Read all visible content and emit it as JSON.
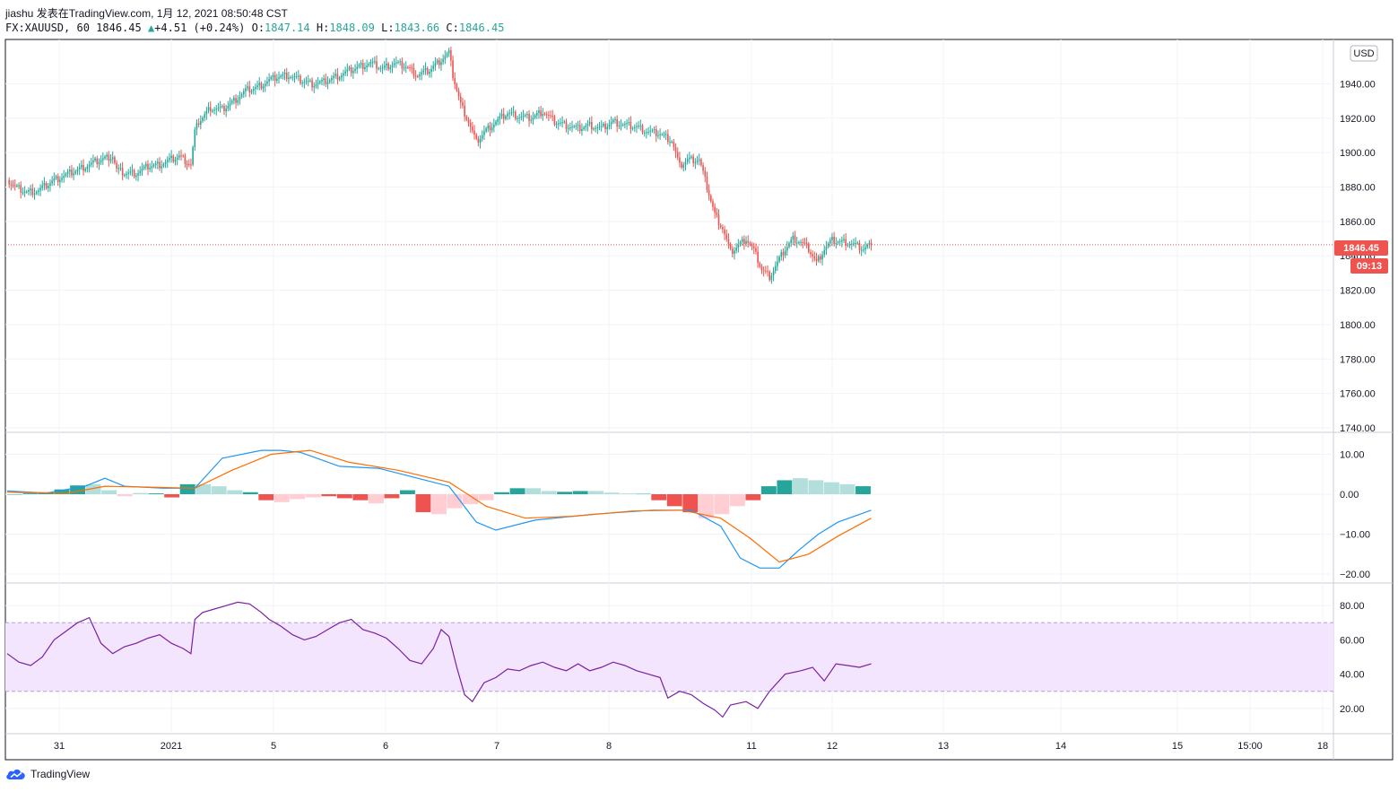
{
  "header": {
    "author": "jiashu",
    "published": "发表在TradingView.com, 1月 12, 2021 08:50:48 CST",
    "symbol": "FX:XAUUSD, 60",
    "last": "1846.45",
    "change_arrow": "▲",
    "change": "+4.51 (+0.24%)",
    "o_label": "O:",
    "o_value": "1847.14",
    "h_label": "H:",
    "h_value": "1848.09",
    "l_label": "L:",
    "l_value": "1843.66",
    "c_label": "C:",
    "c_value": "1846.45"
  },
  "currency_badge": "USD",
  "current_price_tag": "1846.45",
  "countdown_tag": "09:13",
  "footer": {
    "brand": "TradingView"
  },
  "colors": {
    "up": "#26a69a",
    "down": "#ef5350",
    "macd": "#2196f3",
    "signal": "#ff6d00",
    "rsi": "#7b1fa2",
    "rsi_band": "#f3e5fd",
    "price_line": "#ef5350",
    "hist_up_strong": "#26a69a",
    "hist_up_weak": "#b2dfdb",
    "hist_down_strong": "#ef5350",
    "hist_down_weak": "#ffcdd2"
  },
  "chart_data": [
    {
      "type": "candlestick",
      "title": "FX:XAUUSD, 60",
      "x_ticks": [
        "31",
        "2021",
        "5",
        "6",
        "7",
        "8",
        "11",
        "12",
        "13",
        "14",
        "15",
        "15:00",
        "18"
      ],
      "y_ticks": [
        1740,
        1760,
        1780,
        1800,
        1820,
        1840,
        1860,
        1880,
        1900,
        1920,
        1940
      ],
      "y_tick_labels": [
        "1740.00",
        "1760.00",
        "1780.00",
        "1800.00",
        "1820.00",
        "1840.00",
        "1860.00",
        "1880.00",
        "1900.00",
        "1920.00",
        "1940.00"
      ],
      "ylim": [
        1740,
        1960
      ],
      "current_price": 1846.45,
      "close_series": [
        [
          0,
          1884
        ],
        [
          4,
          1880
        ],
        [
          10,
          1877
        ],
        [
          16,
          1878
        ],
        [
          24,
          1884
        ],
        [
          32,
          1888
        ],
        [
          40,
          1892
        ],
        [
          48,
          1896
        ],
        [
          54,
          1898
        ],
        [
          56,
          1890
        ],
        [
          60,
          1888
        ],
        [
          66,
          1888
        ],
        [
          72,
          1892
        ],
        [
          78,
          1893
        ],
        [
          84,
          1896
        ],
        [
          88,
          1898
        ],
        [
          94,
          1893
        ],
        [
          96,
          1912
        ],
        [
          98,
          1918
        ],
        [
          104,
          1926
        ],
        [
          110,
          1925
        ],
        [
          116,
          1930
        ],
        [
          122,
          1936
        ],
        [
          128,
          1938
        ],
        [
          134,
          1942
        ],
        [
          138,
          1944
        ],
        [
          144,
          1945
        ],
        [
          150,
          1942
        ],
        [
          156,
          1940
        ],
        [
          162,
          1941
        ],
        [
          168,
          1944
        ],
        [
          174,
          1947
        ],
        [
          180,
          1950
        ],
        [
          186,
          1952
        ],
        [
          192,
          1949
        ],
        [
          198,
          1952
        ],
        [
          204,
          1950
        ],
        [
          210,
          1945
        ],
        [
          216,
          1948
        ],
        [
          222,
          1954
        ],
        [
          226,
          1958
        ],
        [
          228,
          1945
        ],
        [
          232,
          1928
        ],
        [
          236,
          1918
        ],
        [
          240,
          1906
        ],
        [
          244,
          1912
        ],
        [
          250,
          1918
        ],
        [
          256,
          1923
        ],
        [
          262,
          1921
        ],
        [
          268,
          1920
        ],
        [
          274,
          1924
        ],
        [
          280,
          1918
        ],
        [
          286,
          1916
        ],
        [
          292,
          1914
        ],
        [
          298,
          1916
        ],
        [
          304,
          1914
        ],
        [
          310,
          1918
        ],
        [
          316,
          1916
        ],
        [
          322,
          1915
        ],
        [
          328,
          1912
        ],
        [
          334,
          1911
        ],
        [
          340,
          1907
        ],
        [
          344,
          1892
        ],
        [
          348,
          1896
        ],
        [
          354,
          1896
        ],
        [
          358,
          1880
        ],
        [
          362,
          1864
        ],
        [
          366,
          1856
        ],
        [
          370,
          1842
        ],
        [
          374,
          1846
        ],
        [
          378,
          1850
        ],
        [
          382,
          1843
        ],
        [
          386,
          1832
        ],
        [
          390,
          1828
        ],
        [
          394,
          1836
        ],
        [
          398,
          1844
        ],
        [
          402,
          1850
        ],
        [
          406,
          1848
        ],
        [
          410,
          1844
        ],
        [
          414,
          1836
        ],
        [
          418,
          1844
        ],
        [
          422,
          1849
        ],
        [
          426,
          1848
        ],
        [
          430,
          1848
        ],
        [
          434,
          1846
        ],
        [
          438,
          1844
        ],
        [
          442,
          1846.45
        ]
      ]
    },
    {
      "type": "line",
      "title": "",
      "ylim": [
        -20,
        10
      ],
      "y_ticks": [
        -20,
        -10,
        0,
        10
      ],
      "y_tick_labels": [
        "−20.00",
        "−10.00",
        "0.00",
        "10.00"
      ],
      "series": [
        {
          "values": [
            [
              0,
              0.8
            ],
            [
              20,
              0.3
            ],
            [
              40,
              2
            ],
            [
              50,
              4
            ],
            [
              60,
              2
            ],
            [
              80,
              1.5
            ],
            [
              96,
              1.5
            ],
            [
              110,
              9
            ],
            [
              130,
              11
            ],
            [
              140,
              11
            ],
            [
              150,
              10.5
            ],
            [
              170,
              7
            ],
            [
              190,
              6.5
            ],
            [
              210,
              4
            ],
            [
              226,
              2
            ],
            [
              240,
              -7
            ],
            [
              250,
              -9
            ],
            [
              270,
              -6.5
            ],
            [
              300,
              -5
            ],
            [
              330,
              -4
            ],
            [
              350,
              -4
            ],
            [
              365,
              -8
            ],
            [
              375,
              -16
            ],
            [
              385,
              -18.5
            ],
            [
              395,
              -18.5
            ],
            [
              405,
              -14
            ],
            [
              415,
              -10
            ],
            [
              425,
              -7
            ],
            [
              442,
              -4
            ]
          ]
        },
        {
          "values": [
            [
              0,
              0.5
            ],
            [
              30,
              0.2
            ],
            [
              50,
              2
            ],
            [
              70,
              1.8
            ],
            [
              96,
              1.5
            ],
            [
              115,
              6
            ],
            [
              135,
              10
            ],
            [
              155,
              11
            ],
            [
              175,
              8
            ],
            [
              200,
              6
            ],
            [
              226,
              3
            ],
            [
              245,
              -3
            ],
            [
              265,
              -6
            ],
            [
              290,
              -5.5
            ],
            [
              320,
              -4.2
            ],
            [
              345,
              -4
            ],
            [
              365,
              -6
            ],
            [
              380,
              -11
            ],
            [
              395,
              -17
            ],
            [
              410,
              -15
            ],
            [
              425,
              -10.5
            ],
            [
              442,
              -6
            ]
          ]
        }
      ],
      "histogram": [
        0,
        0.2,
        0.5,
        1.2,
        2.2,
        2.5,
        1,
        -0.5,
        0.3,
        0.2,
        -0.8,
        2.5,
        2.5,
        2,
        1,
        0.5,
        -1.5,
        -2,
        -1.2,
        -0.8,
        -0.5,
        -1,
        -1.5,
        -2.3,
        -1,
        1,
        -4.5,
        -5,
        -3.5,
        -2.5,
        -1.5,
        0.5,
        1.5,
        1.5,
        0.8,
        0.6,
        0.8,
        0.8,
        0.4,
        0.2,
        0.1,
        -1.5,
        -3,
        -4.5,
        -6,
        -5,
        -3,
        -1.5,
        2,
        3.5,
        4,
        3.5,
        3,
        2.5,
        2
      ]
    },
    {
      "type": "line",
      "title": "",
      "ylim": [
        10,
        90
      ],
      "y_ticks": [
        20,
        40,
        60,
        80
      ],
      "y_tick_labels": [
        "20.00",
        "40.00",
        "60.00",
        "80.00"
      ],
      "band": [
        30,
        70
      ],
      "series": [
        {
          "values": [
            [
              0,
              52
            ],
            [
              6,
              47
            ],
            [
              12,
              45
            ],
            [
              18,
              50
            ],
            [
              24,
              60
            ],
            [
              30,
              65
            ],
            [
              36,
              70
            ],
            [
              42,
              73
            ],
            [
              48,
              58
            ],
            [
              54,
              52
            ],
            [
              60,
              56
            ],
            [
              66,
              58
            ],
            [
              72,
              61
            ],
            [
              78,
              63
            ],
            [
              84,
              58
            ],
            [
              90,
              55
            ],
            [
              94,
              52
            ],
            [
              96,
              72
            ],
            [
              100,
              76
            ],
            [
              106,
              78
            ],
            [
              112,
              80
            ],
            [
              118,
              82
            ],
            [
              124,
              81
            ],
            [
              130,
              76
            ],
            [
              134,
              72
            ],
            [
              140,
              68
            ],
            [
              146,
              63
            ],
            [
              152,
              60
            ],
            [
              158,
              62
            ],
            [
              164,
              66
            ],
            [
              170,
              70
            ],
            [
              176,
              72
            ],
            [
              182,
              66
            ],
            [
              188,
              64
            ],
            [
              194,
              61
            ],
            [
              200,
              55
            ],
            [
              206,
              48
            ],
            [
              212,
              46
            ],
            [
              218,
              55
            ],
            [
              222,
              66
            ],
            [
              226,
              62
            ],
            [
              230,
              44
            ],
            [
              234,
              28
            ],
            [
              238,
              24
            ],
            [
              244,
              35
            ],
            [
              250,
              38
            ],
            [
              256,
              43
            ],
            [
              262,
              42
            ],
            [
              268,
              45
            ],
            [
              274,
              47
            ],
            [
              280,
              44
            ],
            [
              286,
              42
            ],
            [
              292,
              46
            ],
            [
              298,
              42
            ],
            [
              304,
              44
            ],
            [
              310,
              47
            ],
            [
              316,
              45
            ],
            [
              322,
              42
            ],
            [
              328,
              40
            ],
            [
              334,
              38
            ],
            [
              338,
              26
            ],
            [
              344,
              30
            ],
            [
              350,
              28
            ],
            [
              356,
              23
            ],
            [
              362,
              19
            ],
            [
              366,
              15
            ],
            [
              370,
              22
            ],
            [
              378,
              24
            ],
            [
              384,
              20
            ],
            [
              390,
              30
            ],
            [
              398,
              40
            ],
            [
              406,
              42
            ],
            [
              412,
              44
            ],
            [
              418,
              36
            ],
            [
              424,
              46
            ],
            [
              430,
              45
            ],
            [
              436,
              44
            ],
            [
              442,
              46
            ]
          ]
        }
      ]
    }
  ]
}
